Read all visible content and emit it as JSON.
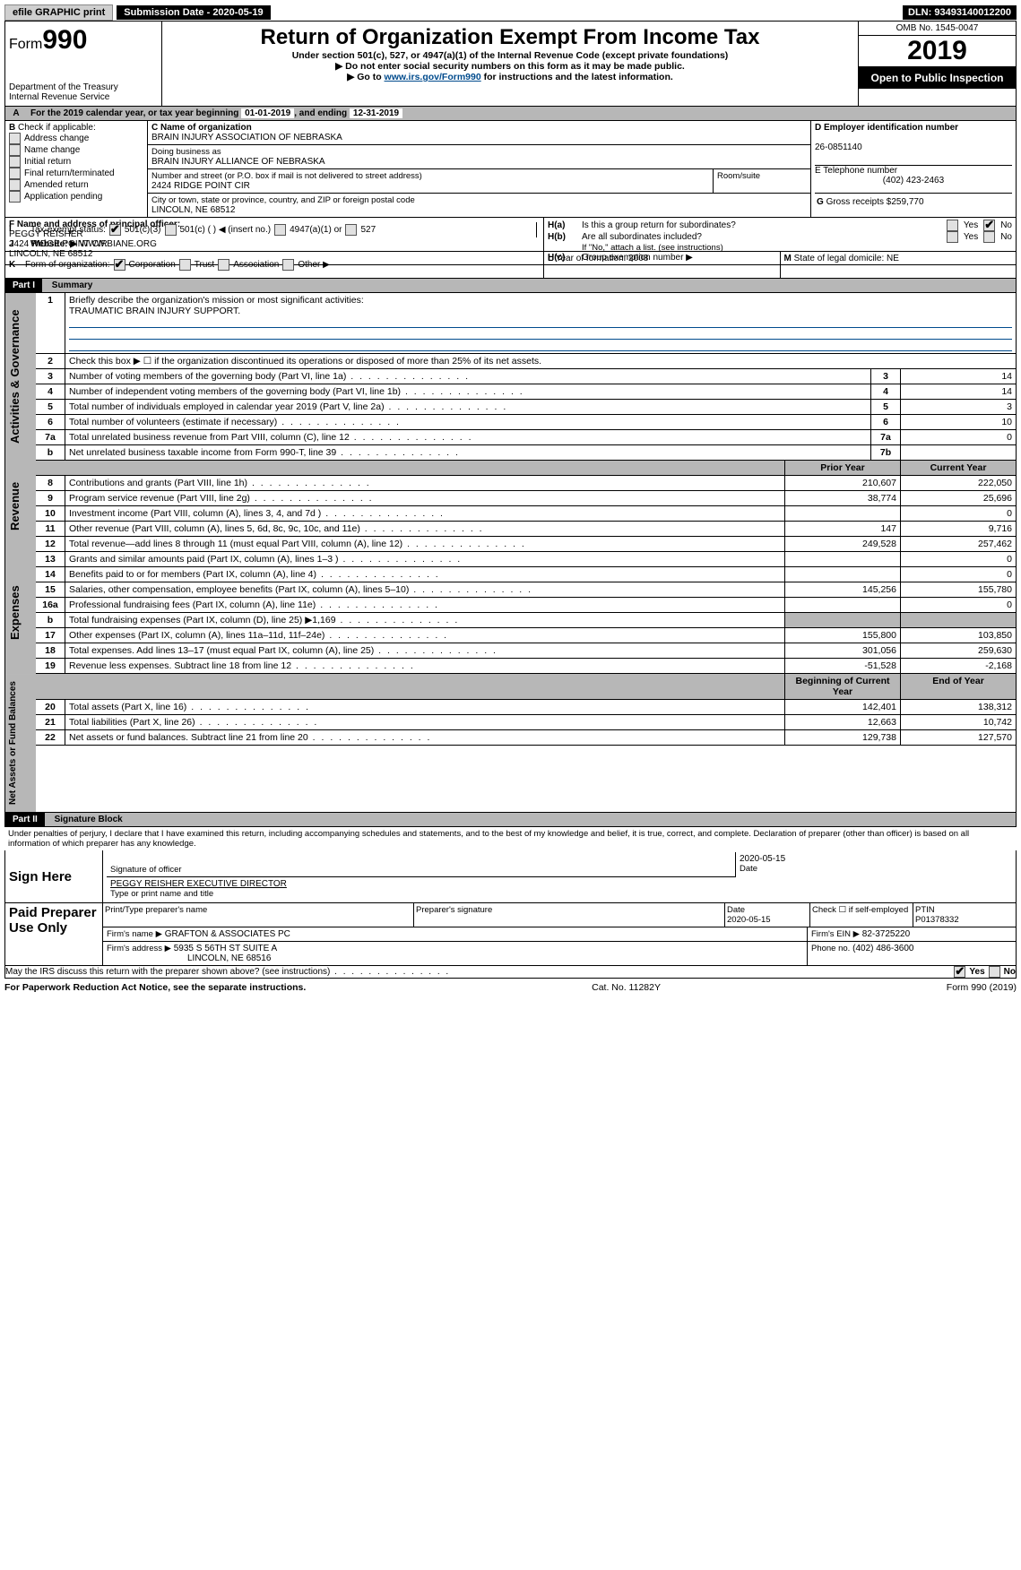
{
  "topbar": {
    "efile_label": "efile GRAPHIC print",
    "submission_label": "Submission Date - 2020-05-19",
    "dln": "DLN: 93493140012200"
  },
  "header": {
    "form_prefix": "Form",
    "form_number": "990",
    "dept1": "Department of the Treasury",
    "dept2": "Internal Revenue Service",
    "title": "Return of Organization Exempt From Income Tax",
    "subtitle": "Under section 501(c), 527, or 4947(a)(1) of the Internal Revenue Code (except private foundations)",
    "note1": "▶ Do not enter social security numbers on this form as it may be made public.",
    "note2_pre": "▶ Go to ",
    "note2_link": "www.irs.gov/Form990",
    "note2_post": " for instructions and the latest information.",
    "omb": "OMB No. 1545-0047",
    "year": "2019",
    "open": "Open to Public Inspection"
  },
  "line_a": {
    "text_pre": "For the 2019 calendar year, or tax year beginning ",
    "begin": "01-01-2019",
    "mid": ", and ending ",
    "end": "12-31-2019"
  },
  "block_b": {
    "label": "Check if applicable:",
    "items": [
      "Address change",
      "Name change",
      "Initial return",
      "Final return/terminated",
      "Amended return",
      "Application pending"
    ]
  },
  "block_c": {
    "label": "C Name of organization",
    "name": "BRAIN INJURY ASSOCIATION OF NEBRASKA",
    "dba_label": "Doing business as",
    "dba": "BRAIN INJURY ALLIANCE OF NEBRASKA",
    "addr_label": "Number and street (or P.O. box if mail is not delivered to street address)",
    "addr": "2424 RIDGE POINT CIR",
    "room_label": "Room/suite",
    "city_label": "City or town, state or province, country, and ZIP or foreign postal code",
    "city": "LINCOLN, NE  68512"
  },
  "block_d": {
    "label": "D Employer identification number",
    "val": "26-0851140"
  },
  "block_e": {
    "label": "E Telephone number",
    "val": "(402) 423-2463"
  },
  "block_g": {
    "label": "G",
    "text": "Gross receipts $",
    "val": "259,770"
  },
  "block_f": {
    "label": "F Name and address of principal officer:",
    "name": "PEGGY REISHER",
    "addr": "2424 RIDGE POINT CIR",
    "city": "LINCOLN, NE  68512"
  },
  "block_h": {
    "a_label": "H(a)",
    "a_text": "Is this a group return for subordinates?",
    "b_label": "H(b)",
    "b_text": "Are all subordinates included?",
    "b_note": "If \"No,\" attach a list. (see instructions)",
    "c_label": "H(c)",
    "c_text": "Group exemption number ▶",
    "yes": "Yes",
    "no": "No"
  },
  "block_i": {
    "label": "I",
    "text": "Tax-exempt status:",
    "opts": [
      "501(c)(3)",
      "501(c) ( ) ◀ (insert no.)",
      "4947(a)(1) or",
      "527"
    ]
  },
  "block_j": {
    "label": "J",
    "text": "Website: ▶",
    "val": "WWW.BIANE.ORG"
  },
  "block_k": {
    "label": "K",
    "text": "Form of organization:",
    "opts": [
      "Corporation",
      "Trust",
      "Association",
      "Other ▶"
    ]
  },
  "block_l": {
    "label": "L",
    "text": "Year of formation:",
    "val": "2008"
  },
  "block_m": {
    "label": "M",
    "text": "State of legal domicile:",
    "val": "NE"
  },
  "part1": {
    "label": "Part I",
    "title": "Summary"
  },
  "governance": {
    "title": "Activities & Governance",
    "lines": [
      {
        "n": "1",
        "t": "Briefly describe the organization's mission or most significant activities:"
      },
      {
        "n": "",
        "t": "TRAUMATIC BRAIN INJURY SUPPORT."
      }
    ],
    "line2": "Check this box ▶ ☐ if the organization discontinued its operations or disposed of more than 25% of its net assets.",
    "rows": [
      {
        "n": "3",
        "t": "Number of voting members of the governing body (Part VI, line 1a)",
        "ln": "3",
        "v": "14"
      },
      {
        "n": "4",
        "t": "Number of independent voting members of the governing body (Part VI, line 1b)",
        "ln": "4",
        "v": "14"
      },
      {
        "n": "5",
        "t": "Total number of individuals employed in calendar year 2019 (Part V, line 2a)",
        "ln": "5",
        "v": "3"
      },
      {
        "n": "6",
        "t": "Total number of volunteers (estimate if necessary)",
        "ln": "6",
        "v": "10"
      },
      {
        "n": "7a",
        "t": "Total unrelated business revenue from Part VIII, column (C), line 12",
        "ln": "7a",
        "v": "0"
      },
      {
        "n": "b",
        "t": "Net unrelated business taxable income from Form 990-T, line 39",
        "ln": "7b",
        "v": ""
      }
    ]
  },
  "cols": {
    "py": "Prior Year",
    "cy": "Current Year"
  },
  "revenue": {
    "title": "Revenue",
    "rows": [
      {
        "n": "8",
        "t": "Contributions and grants (Part VIII, line 1h)",
        "py": "210,607",
        "cy": "222,050"
      },
      {
        "n": "9",
        "t": "Program service revenue (Part VIII, line 2g)",
        "py": "38,774",
        "cy": "25,696"
      },
      {
        "n": "10",
        "t": "Investment income (Part VIII, column (A), lines 3, 4, and 7d )",
        "py": "",
        "cy": "0"
      },
      {
        "n": "11",
        "t": "Other revenue (Part VIII, column (A), lines 5, 6d, 8c, 9c, 10c, and 11e)",
        "py": "147",
        "cy": "9,716"
      },
      {
        "n": "12",
        "t": "Total revenue—add lines 8 through 11 (must equal Part VIII, column (A), line 12)",
        "py": "249,528",
        "cy": "257,462"
      }
    ]
  },
  "expenses": {
    "title": "Expenses",
    "rows": [
      {
        "n": "13",
        "t": "Grants and similar amounts paid (Part IX, column (A), lines 1–3 )",
        "py": "",
        "cy": "0"
      },
      {
        "n": "14",
        "t": "Benefits paid to or for members (Part IX, column (A), line 4)",
        "py": "",
        "cy": "0"
      },
      {
        "n": "15",
        "t": "Salaries, other compensation, employee benefits (Part IX, column (A), lines 5–10)",
        "py": "145,256",
        "cy": "155,780"
      },
      {
        "n": "16a",
        "t": "Professional fundraising fees (Part IX, column (A), line 11e)",
        "py": "",
        "cy": "0"
      },
      {
        "n": "b",
        "t": "Total fundraising expenses (Part IX, column (D), line 25) ▶1,169",
        "py": "—gray—",
        "cy": "—gray—"
      },
      {
        "n": "17",
        "t": "Other expenses (Part IX, column (A), lines 11a–11d, 11f–24e)",
        "py": "155,800",
        "cy": "103,850"
      },
      {
        "n": "18",
        "t": "Total expenses. Add lines 13–17 (must equal Part IX, column (A), line 25)",
        "py": "301,056",
        "cy": "259,630"
      },
      {
        "n": "19",
        "t": "Revenue less expenses. Subtract line 18 from line 12",
        "py": "-51,528",
        "cy": "-2,168"
      }
    ]
  },
  "netcols": {
    "py": "Beginning of Current Year",
    "cy": "End of Year"
  },
  "net": {
    "title": "Net Assets or Fund Balances",
    "rows": [
      {
        "n": "20",
        "t": "Total assets (Part X, line 16)",
        "py": "142,401",
        "cy": "138,312"
      },
      {
        "n": "21",
        "t": "Total liabilities (Part X, line 26)",
        "py": "12,663",
        "cy": "10,742"
      },
      {
        "n": "22",
        "t": "Net assets or fund balances. Subtract line 21 from line 20",
        "py": "129,738",
        "cy": "127,570"
      }
    ]
  },
  "part2": {
    "label": "Part II",
    "title": "Signature Block"
  },
  "perjury": "Under penalties of perjury, I declare that I have examined this return, including accompanying schedules and statements, and to the best of my knowledge and belief, it is true, correct, and complete. Declaration of preparer (other than officer) is based on all information of which preparer has any knowledge.",
  "sign": {
    "label": "Sign Here",
    "sig_officer": "Signature of officer",
    "date": "Date",
    "date_val": "2020-05-15",
    "name": "PEGGY REISHER  EXECUTIVE DIRECTOR",
    "name_label": "Type or print name and title"
  },
  "preparer": {
    "label": "Paid Preparer Use Only",
    "print_label": "Print/Type preparer's name",
    "sig_label": "Preparer's signature",
    "date_label": "Date",
    "date_val": "2020-05-15",
    "check_label": "Check ☐ if self-employed",
    "ptin_label": "PTIN",
    "ptin": "P01378332",
    "firm_name_label": "Firm's name   ▶",
    "firm_name": "GRAFTON & ASSOCIATES PC",
    "firm_ein_label": "Firm's EIN ▶",
    "firm_ein": "82-3725220",
    "firm_addr_label": "Firm's address ▶",
    "firm_addr": "5935 S 56TH ST SUITE A",
    "firm_city": "LINCOLN, NE  68516",
    "phone_label": "Phone no.",
    "phone": "(402) 486-3600"
  },
  "may_irs": {
    "text": "May the IRS discuss this return with the preparer shown above? (see instructions)",
    "yes": "Yes",
    "no": "No"
  },
  "footer": {
    "left": "For Paperwork Reduction Act Notice, see the separate instructions.",
    "mid": "Cat. No. 11282Y",
    "right": "Form 990 (2019)"
  }
}
